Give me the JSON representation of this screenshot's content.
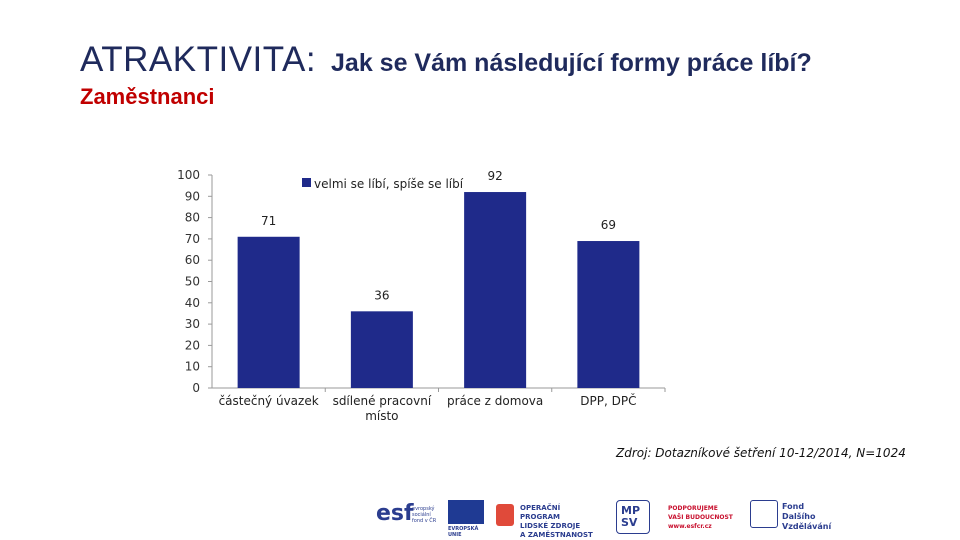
{
  "header": {
    "title_main": "ATRAKTIVITA:",
    "title_question": "Jak se Vám následující formy práce líbí?",
    "subtitle": "Zaměstnanci"
  },
  "chart_data": {
    "type": "bar",
    "categories": [
      "částečný úvazek",
      "sdílené pracovní místo",
      "práce z domova",
      "DPP, DPČ"
    ],
    "series": [
      {
        "name": "velmi se líbí, spíše se líbí",
        "values": [
          71,
          36,
          92,
          69
        ]
      }
    ],
    "ylim": [
      0,
      100
    ],
    "yticks": [
      0,
      10,
      20,
      30,
      40,
      50,
      60,
      70,
      80,
      90,
      100
    ],
    "grid": false,
    "legend_position": "top",
    "bar_color": "#1f2a8a"
  },
  "footer": {
    "source": "Zdroj: Dotazníkové šetření 10-12/2014, N=1024",
    "logos": [
      {
        "name": "esf",
        "label": "esf",
        "caption": "evropský\nsociální\nfond v ČR"
      },
      {
        "name": "eu",
        "caption": "EVROPSKÁ UNIE"
      },
      {
        "name": "op-lzz",
        "caption": "OPERAČNÍ PROGRAM\nLIDSKÉ ZDROJE\nA ZAMĚSTNANOST"
      },
      {
        "name": "mpsv",
        "label": "MP\nSV"
      },
      {
        "name": "podporujeme",
        "caption": "PODPORUJEME\nVAŠI BUDOUCNOST\nwww.esfcr.cz"
      },
      {
        "name": "fdv",
        "caption": "Fond\nDalšího\nVzdělávání"
      }
    ]
  }
}
